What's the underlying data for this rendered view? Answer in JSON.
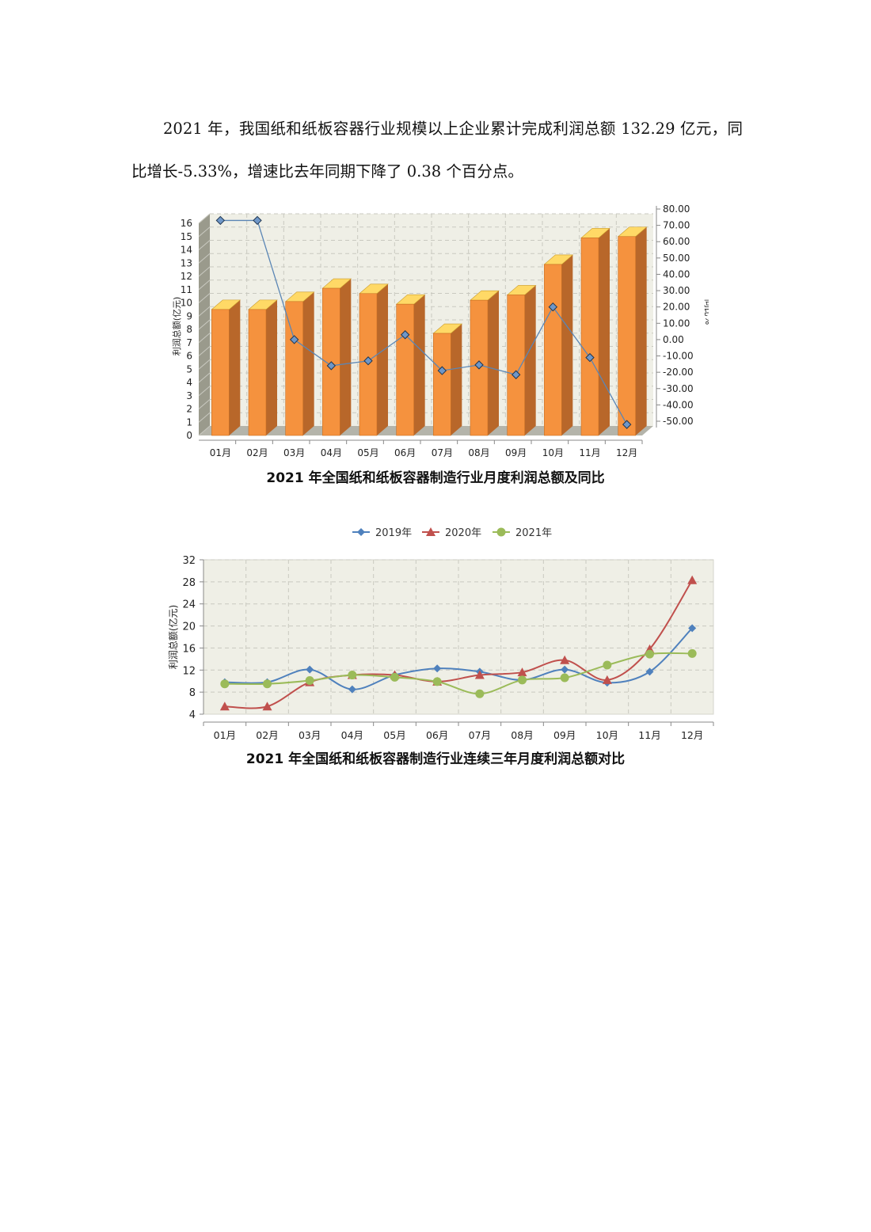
{
  "paragraph": {
    "text": "2021 年，我国纸和纸板容器行业规模以上企业累计完成利润总额 132.29 亿元，同比增长-5.33%，增速比去年同期下降了 0.38 个百分点。"
  },
  "captions": {
    "chart1": "2021 年全国纸和纸板容器制造行业月度利润总额及同比",
    "chart2": "2021 年全国纸和纸板容器制造行业连续三年月度利润总额对比"
  },
  "colors": {
    "bar_front": "#f5923e",
    "bar_top": "#ffd966",
    "bar_side": "#b8672a",
    "line_yoy": "#5b86b5",
    "marker_yoy": "#6f97c8",
    "plot_bg": "#efefe6",
    "s2019": "#4f81bd",
    "s2020": "#c0504d",
    "s2021": "#9bbb59"
  },
  "chart_data": [
    {
      "type": "bar",
      "title": "",
      "categories": [
        "01月",
        "02月",
        "03月",
        "04月",
        "05月",
        "06月",
        "07月",
        "08月",
        "09月",
        "10月",
        "11月",
        "12月"
      ],
      "ylabel": "利润总额(亿元)",
      "ylabel_right": "同比%",
      "ylim": [
        0,
        16
      ],
      "yticks": [
        "0",
        "1",
        "2",
        "3",
        "4",
        "5",
        "6",
        "7",
        "8",
        "9",
        "10",
        "11",
        "12",
        "13",
        "14",
        "15",
        "16"
      ],
      "ylim_right": [
        -50,
        80
      ],
      "yticks_right": [
        "-50.00",
        "-40.00",
        "-30.00",
        "-20.00",
        "-10.00",
        "0.00",
        "10.00",
        "20.00",
        "30.00",
        "40.00",
        "50.00",
        "60.00",
        "70.00",
        "80.00"
      ],
      "series": [
        {
          "type": "bar",
          "values": [
            9.5,
            9.5,
            10.1,
            11.1,
            10.7,
            9.9,
            7.7,
            10.2,
            10.6,
            12.9,
            14.9,
            15.0
          ]
        },
        {
          "type": "line",
          "axis": "right",
          "values": [
            73,
            73,
            0,
            -16,
            -13,
            3,
            -19,
            -15.5,
            -21.5,
            20,
            -11,
            -52
          ]
        }
      ],
      "grid": true,
      "legend": "none"
    },
    {
      "type": "line",
      "title": "",
      "categories": [
        "01月",
        "02月",
        "03月",
        "04月",
        "05月",
        "06月",
        "07月",
        "08月",
        "09月",
        "10月",
        "11月",
        "12月"
      ],
      "ylabel": "利润总额(亿元)",
      "ylim": [
        4,
        32
      ],
      "yticks": [
        "4",
        "8",
        "12",
        "16",
        "20",
        "24",
        "28",
        "32"
      ],
      "series": [
        {
          "name": "2019年",
          "marker": "diamond",
          "values": [
            9.8,
            9.8,
            12.1,
            8.5,
            11.1,
            12.3,
            11.7,
            10.2,
            12.1,
            9.7,
            11.7,
            19.6
          ]
        },
        {
          "name": "2020年",
          "marker": "triangle",
          "values": [
            5.4,
            5.4,
            9.8,
            11.1,
            11.1,
            9.9,
            11.1,
            11.6,
            13.8,
            10.2,
            15.8,
            28.3
          ]
        },
        {
          "name": "2021年",
          "marker": "circle",
          "values": [
            9.5,
            9.5,
            10.1,
            11.1,
            10.7,
            9.9,
            7.7,
            10.2,
            10.6,
            12.9,
            14.9,
            15.0
          ]
        }
      ],
      "grid": true,
      "legend": "top-center"
    }
  ]
}
